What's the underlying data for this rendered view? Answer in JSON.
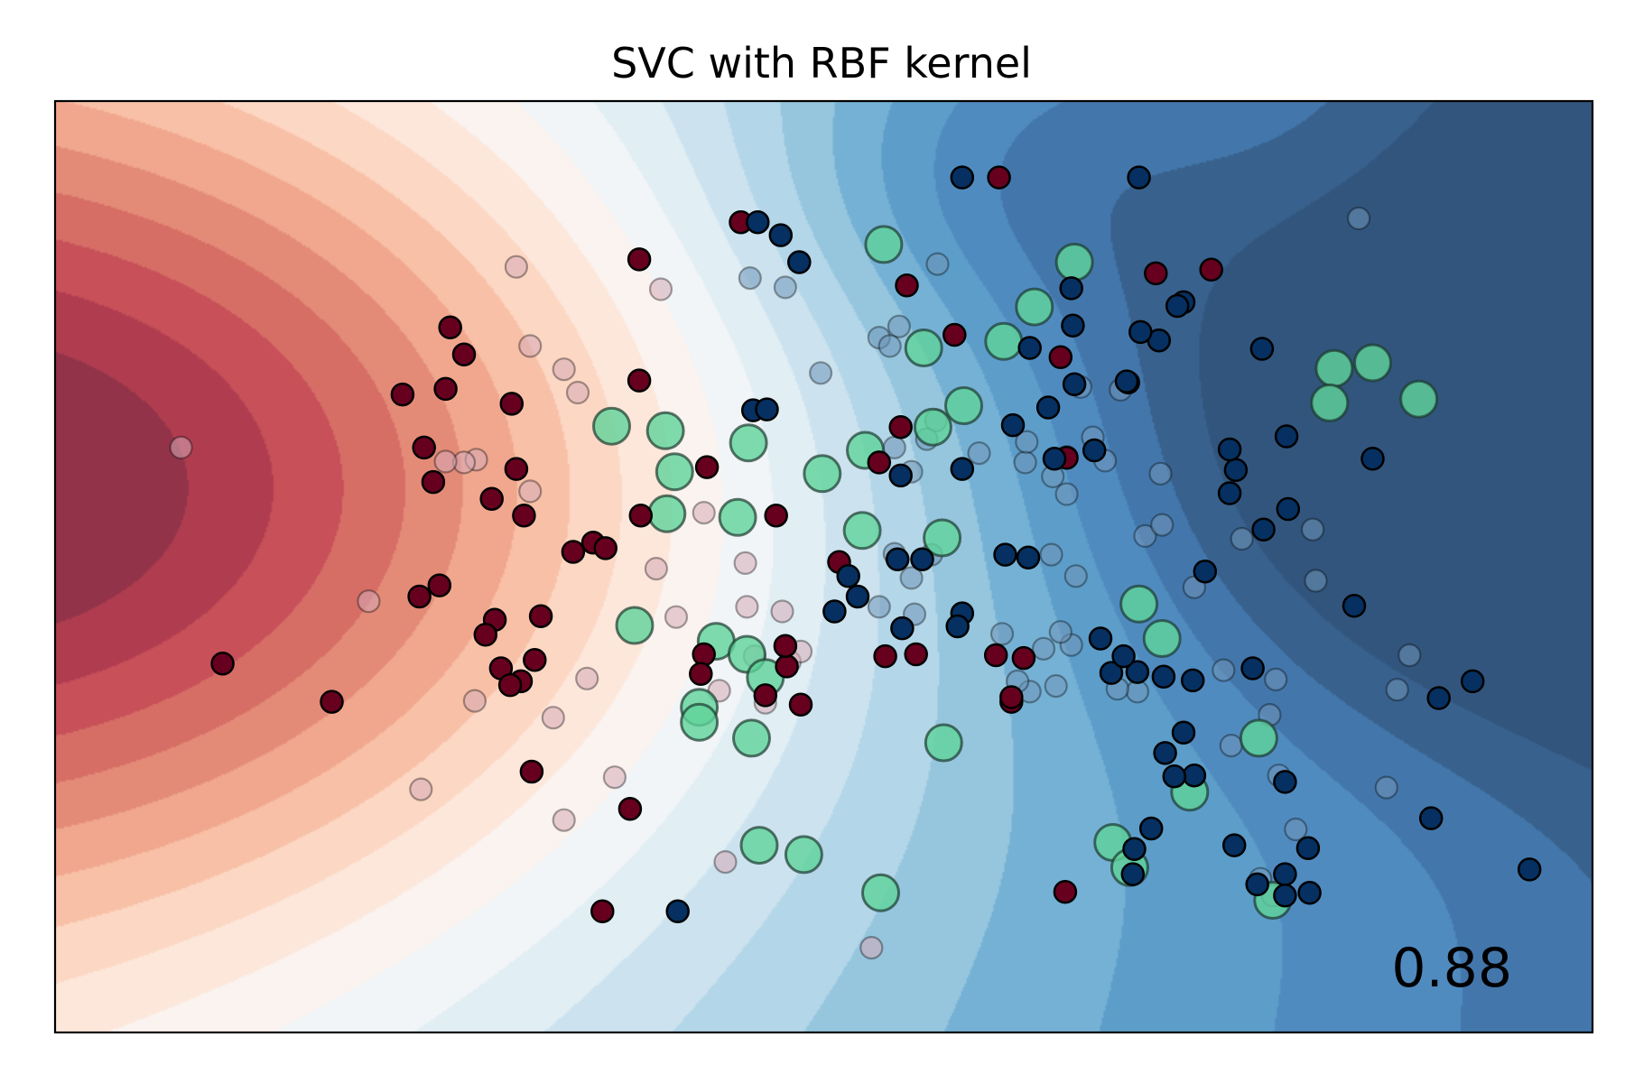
{
  "chart_data": {
    "type": "scatter",
    "title": "SVC with RBF kernel",
    "score_label": "0.88",
    "xlim": [
      0,
      100
    ],
    "ylim": [
      0,
      100
    ],
    "ticks": "none",
    "grid": false,
    "colors": {
      "class_red": "#67001f",
      "class_blue": "#053061",
      "support_ring": "#5fd39a",
      "marker_edge": "#000000",
      "test_red": "#d6a9b6",
      "test_blue": "#6f95b8"
    },
    "background_field": {
      "colormap": "RdBu",
      "centers": [
        {
          "x": 0,
          "y": 58.5,
          "weight": 1.3,
          "spread": 34
        },
        {
          "x": 100,
          "y": 70,
          "weight": -0.8,
          "spread": 25
        },
        {
          "x": 62,
          "y": 92,
          "weight": -0.28,
          "spread": 12
        },
        {
          "x": 82,
          "y": 92,
          "weight": 0.18,
          "spread": 12
        },
        {
          "x": 90,
          "y": 22,
          "weight": 0.05,
          "spread": 14
        }
      ],
      "x_slope": -0.85,
      "levels": 20
    },
    "train_points": {
      "red": [
        [
          44.6,
          87.0
        ],
        [
          38.0,
          83.0
        ],
        [
          25.7,
          75.7
        ],
        [
          26.6,
          72.8
        ],
        [
          25.4,
          69.1
        ],
        [
          22.6,
          68.5
        ],
        [
          29.7,
          67.5
        ],
        [
          38.0,
          70.0
        ],
        [
          24.0,
          62.8
        ],
        [
          24.6,
          59.1
        ],
        [
          30.0,
          60.5
        ],
        [
          42.4,
          60.7
        ],
        [
          28.4,
          57.3
        ],
        [
          30.5,
          55.5
        ],
        [
          38.1,
          55.5
        ],
        [
          35.0,
          52.6
        ],
        [
          35.8,
          52.0
        ],
        [
          46.9,
          55.5
        ],
        [
          33.7,
          51.6
        ],
        [
          42.2,
          40.6
        ],
        [
          23.7,
          46.8
        ],
        [
          25.0,
          48.0
        ],
        [
          28.6,
          44.3
        ],
        [
          28.0,
          42.7
        ],
        [
          31.6,
          44.7
        ],
        [
          31.2,
          40.0
        ],
        [
          29.0,
          39.1
        ],
        [
          30.3,
          37.7
        ],
        [
          10.9,
          39.6
        ],
        [
          18.0,
          35.5
        ],
        [
          29.6,
          37.3
        ],
        [
          31.0,
          28.0
        ],
        [
          37.4,
          24.0
        ],
        [
          35.6,
          13.0
        ],
        [
          42.0,
          38.5
        ],
        [
          48.5,
          35.2
        ],
        [
          46.2,
          36.2
        ],
        [
          47.6,
          39.3
        ],
        [
          47.5,
          41.5
        ],
        [
          55.4,
          80.2
        ],
        [
          71.6,
          81.5
        ],
        [
          75.2,
          81.9
        ],
        [
          58.5,
          74.9
        ],
        [
          65.8,
          61.7
        ],
        [
          55.0,
          65.0
        ],
        [
          53.6,
          61.2
        ],
        [
          51.0,
          50.5
        ],
        [
          54.0,
          40.4
        ],
        [
          56.0,
          40.6
        ],
        [
          61.2,
          40.5
        ],
        [
          63.0,
          40.2
        ],
        [
          62.2,
          35.5
        ],
        [
          62.2,
          36.0
        ],
        [
          65.7,
          15.1
        ],
        [
          61.4,
          91.8
        ],
        [
          65.4,
          72.5
        ]
      ],
      "blue": [
        [
          59.0,
          91.8
        ],
        [
          70.5,
          91.8
        ],
        [
          45.7,
          87.0
        ],
        [
          47.2,
          85.6
        ],
        [
          48.4,
          82.7
        ],
        [
          66.3,
          69.6
        ],
        [
          69.8,
          69.8
        ],
        [
          65.0,
          61.6
        ],
        [
          71.8,
          74.3
        ],
        [
          73.4,
          78.4
        ],
        [
          69.7,
          69.9
        ],
        [
          73.0,
          78.0
        ],
        [
          70.6,
          75.2
        ],
        [
          66.1,
          79.9
        ],
        [
          66.2,
          75.9
        ],
        [
          63.4,
          73.5
        ],
        [
          45.4,
          66.8
        ],
        [
          46.3,
          66.9
        ],
        [
          55.0,
          59.8
        ],
        [
          59.0,
          60.5
        ],
        [
          62.3,
          65.2
        ],
        [
          64.6,
          67.1
        ],
        [
          67.6,
          62.5
        ],
        [
          80.2,
          56.2
        ],
        [
          85.7,
          61.6
        ],
        [
          84.5,
          45.8
        ],
        [
          80.1,
          64.0
        ],
        [
          78.5,
          73.4
        ],
        [
          76.8,
          60.4
        ],
        [
          78.6,
          54.0
        ],
        [
          76.4,
          57.9
        ],
        [
          76.4,
          62.6
        ],
        [
          74.8,
          49.5
        ],
        [
          70.4,
          38.7
        ],
        [
          72.1,
          38.2
        ],
        [
          63.3,
          51.0
        ],
        [
          50.7,
          45.2
        ],
        [
          56.4,
          50.8
        ],
        [
          54.8,
          50.8
        ],
        [
          51.6,
          49.0
        ],
        [
          52.2,
          46.8
        ],
        [
          61.8,
          51.3
        ],
        [
          59.0,
          45.0
        ],
        [
          58.7,
          43.6
        ],
        [
          55.1,
          43.4
        ],
        [
          68.0,
          42.3
        ],
        [
          68.7,
          38.6
        ],
        [
          77.9,
          39.1
        ],
        [
          72.2,
          30.0
        ],
        [
          73.4,
          32.2
        ],
        [
          74.0,
          37.8
        ],
        [
          69.5,
          40.4
        ],
        [
          80.0,
          26.9
        ],
        [
          74.1,
          27.6
        ],
        [
          71.3,
          21.9
        ],
        [
          70.2,
          19.7
        ],
        [
          76.7,
          20.1
        ],
        [
          78.2,
          15.9
        ],
        [
          80.0,
          17.0
        ],
        [
          72.8,
          27.5
        ],
        [
          81.5,
          19.8
        ],
        [
          81.6,
          15.0
        ],
        [
          80.0,
          14.7
        ],
        [
          70.1,
          17.0
        ],
        [
          89.5,
          23.0
        ],
        [
          92.2,
          37.7
        ],
        [
          90.0,
          35.9
        ],
        [
          95.9,
          17.5
        ],
        [
          40.5,
          13.0
        ]
      ],
      "support_vectors": [
        [
          53.9,
          84.6
        ],
        [
          61.7,
          74.2
        ],
        [
          56.5,
          73.5
        ],
        [
          59.1,
          67.3
        ],
        [
          63.7,
          77.9
        ],
        [
          70.5,
          46.0
        ],
        [
          72.0,
          42.3
        ],
        [
          45.1,
          63.3
        ],
        [
          57.1,
          65.0
        ],
        [
          39.7,
          64.6
        ],
        [
          40.3,
          60.2
        ],
        [
          36.2,
          65.1
        ],
        [
          44.4,
          55.3
        ],
        [
          39.8,
          55.7
        ],
        [
          41.9,
          34.9
        ],
        [
          37.7,
          43.7
        ],
        [
          43.0,
          42.0
        ],
        [
          45.0,
          40.6
        ],
        [
          46.2,
          38.1
        ],
        [
          45.3,
          31.6
        ],
        [
          41.9,
          33.3
        ],
        [
          45.8,
          20.1
        ],
        [
          48.7,
          19.1
        ],
        [
          53.7,
          15.0
        ],
        [
          78.3,
          31.6
        ],
        [
          73.8,
          25.8
        ],
        [
          68.8,
          20.4
        ],
        [
          69.9,
          17.7
        ],
        [
          79.2,
          14.2
        ],
        [
          57.8,
          31.1
        ],
        [
          52.7,
          62.5
        ],
        [
          57.7,
          53.1
        ],
        [
          52.5,
          53.9
        ],
        [
          49.9,
          60.0
        ],
        [
          66.3,
          82.7
        ],
        [
          83.2,
          71.3
        ],
        [
          85.7,
          71.9
        ],
        [
          88.7,
          68.0
        ],
        [
          82.9,
          67.6
        ]
      ]
    },
    "test_points": {
      "red": [
        [
          30.0,
          82.2
        ],
        [
          39.4,
          79.8
        ],
        [
          30.9,
          73.7
        ],
        [
          33.1,
          71.2
        ],
        [
          34.0,
          68.7
        ],
        [
          8.2,
          62.8
        ],
        [
          27.4,
          61.5
        ],
        [
          26.6,
          61.2
        ],
        [
          25.4,
          61.3
        ],
        [
          30.9,
          58.1
        ],
        [
          42.2,
          55.8
        ],
        [
          39.1,
          49.8
        ],
        [
          44.9,
          50.4
        ],
        [
          40.4,
          44.6
        ],
        [
          20.4,
          46.3
        ],
        [
          47.3,
          45.2
        ],
        [
          47.8,
          39.8
        ],
        [
          45.0,
          45.7
        ],
        [
          34.6,
          38.0
        ],
        [
          27.3,
          35.6
        ],
        [
          32.4,
          33.8
        ],
        [
          36.4,
          27.4
        ],
        [
          23.8,
          26.1
        ],
        [
          33.1,
          22.8
        ],
        [
          43.6,
          18.3
        ],
        [
          53.1,
          9.1
        ],
        [
          46.2,
          35.4
        ],
        [
          45.5,
          40.4
        ],
        [
          48.5,
          40.9
        ],
        [
          43.2,
          36.7
        ]
      ],
      "blue": [
        [
          45.2,
          81.0
        ],
        [
          47.5,
          80.0
        ],
        [
          54.9,
          75.8
        ],
        [
          53.6,
          74.6
        ],
        [
          57.4,
          82.5
        ],
        [
          54.3,
          73.7
        ],
        [
          49.8,
          70.8
        ],
        [
          66.7,
          69.3
        ],
        [
          69.3,
          69.0
        ],
        [
          54.6,
          62.8
        ],
        [
          54.6,
          51.4
        ],
        [
          57.0,
          51.3
        ],
        [
          55.7,
          60.2
        ],
        [
          57.3,
          65.7
        ],
        [
          56.7,
          63.7
        ],
        [
          65.8,
          61.8
        ],
        [
          63.1,
          61.2
        ],
        [
          64.9,
          59.7
        ],
        [
          60.1,
          62.2
        ],
        [
          63.2,
          63.4
        ],
        [
          65.8,
          57.8
        ],
        [
          68.3,
          61.4
        ],
        [
          70.9,
          53.3
        ],
        [
          72.0,
          54.5
        ],
        [
          71.9,
          60.0
        ],
        [
          64.8,
          51.3
        ],
        [
          53.6,
          45.7
        ],
        [
          61.6,
          42.8
        ],
        [
          64.3,
          41.2
        ],
        [
          66.1,
          41.6
        ],
        [
          65.4,
          43.0
        ],
        [
          66.4,
          49.0
        ],
        [
          70.4,
          36.6
        ],
        [
          69.1,
          36.9
        ],
        [
          76.0,
          38.9
        ],
        [
          79.4,
          37.9
        ],
        [
          79.0,
          34.1
        ],
        [
          79.6,
          27.6
        ],
        [
          76.5,
          30.8
        ],
        [
          63.4,
          36.6
        ],
        [
          62.6,
          37.7
        ],
        [
          65.1,
          37.2
        ],
        [
          55.9,
          44.9
        ],
        [
          55.7,
          48.8
        ],
        [
          80.7,
          21.8
        ],
        [
          78.4,
          16.5
        ],
        [
          79.2,
          14.7
        ],
        [
          86.6,
          26.3
        ],
        [
          87.3,
          36.8
        ],
        [
          88.1,
          40.5
        ],
        [
          82.0,
          48.5
        ],
        [
          81.8,
          54.0
        ],
        [
          77.2,
          53.0
        ],
        [
          74.1,
          47.8
        ],
        [
          84.8,
          87.4
        ],
        [
          67.5,
          63.9
        ]
      ]
    }
  }
}
